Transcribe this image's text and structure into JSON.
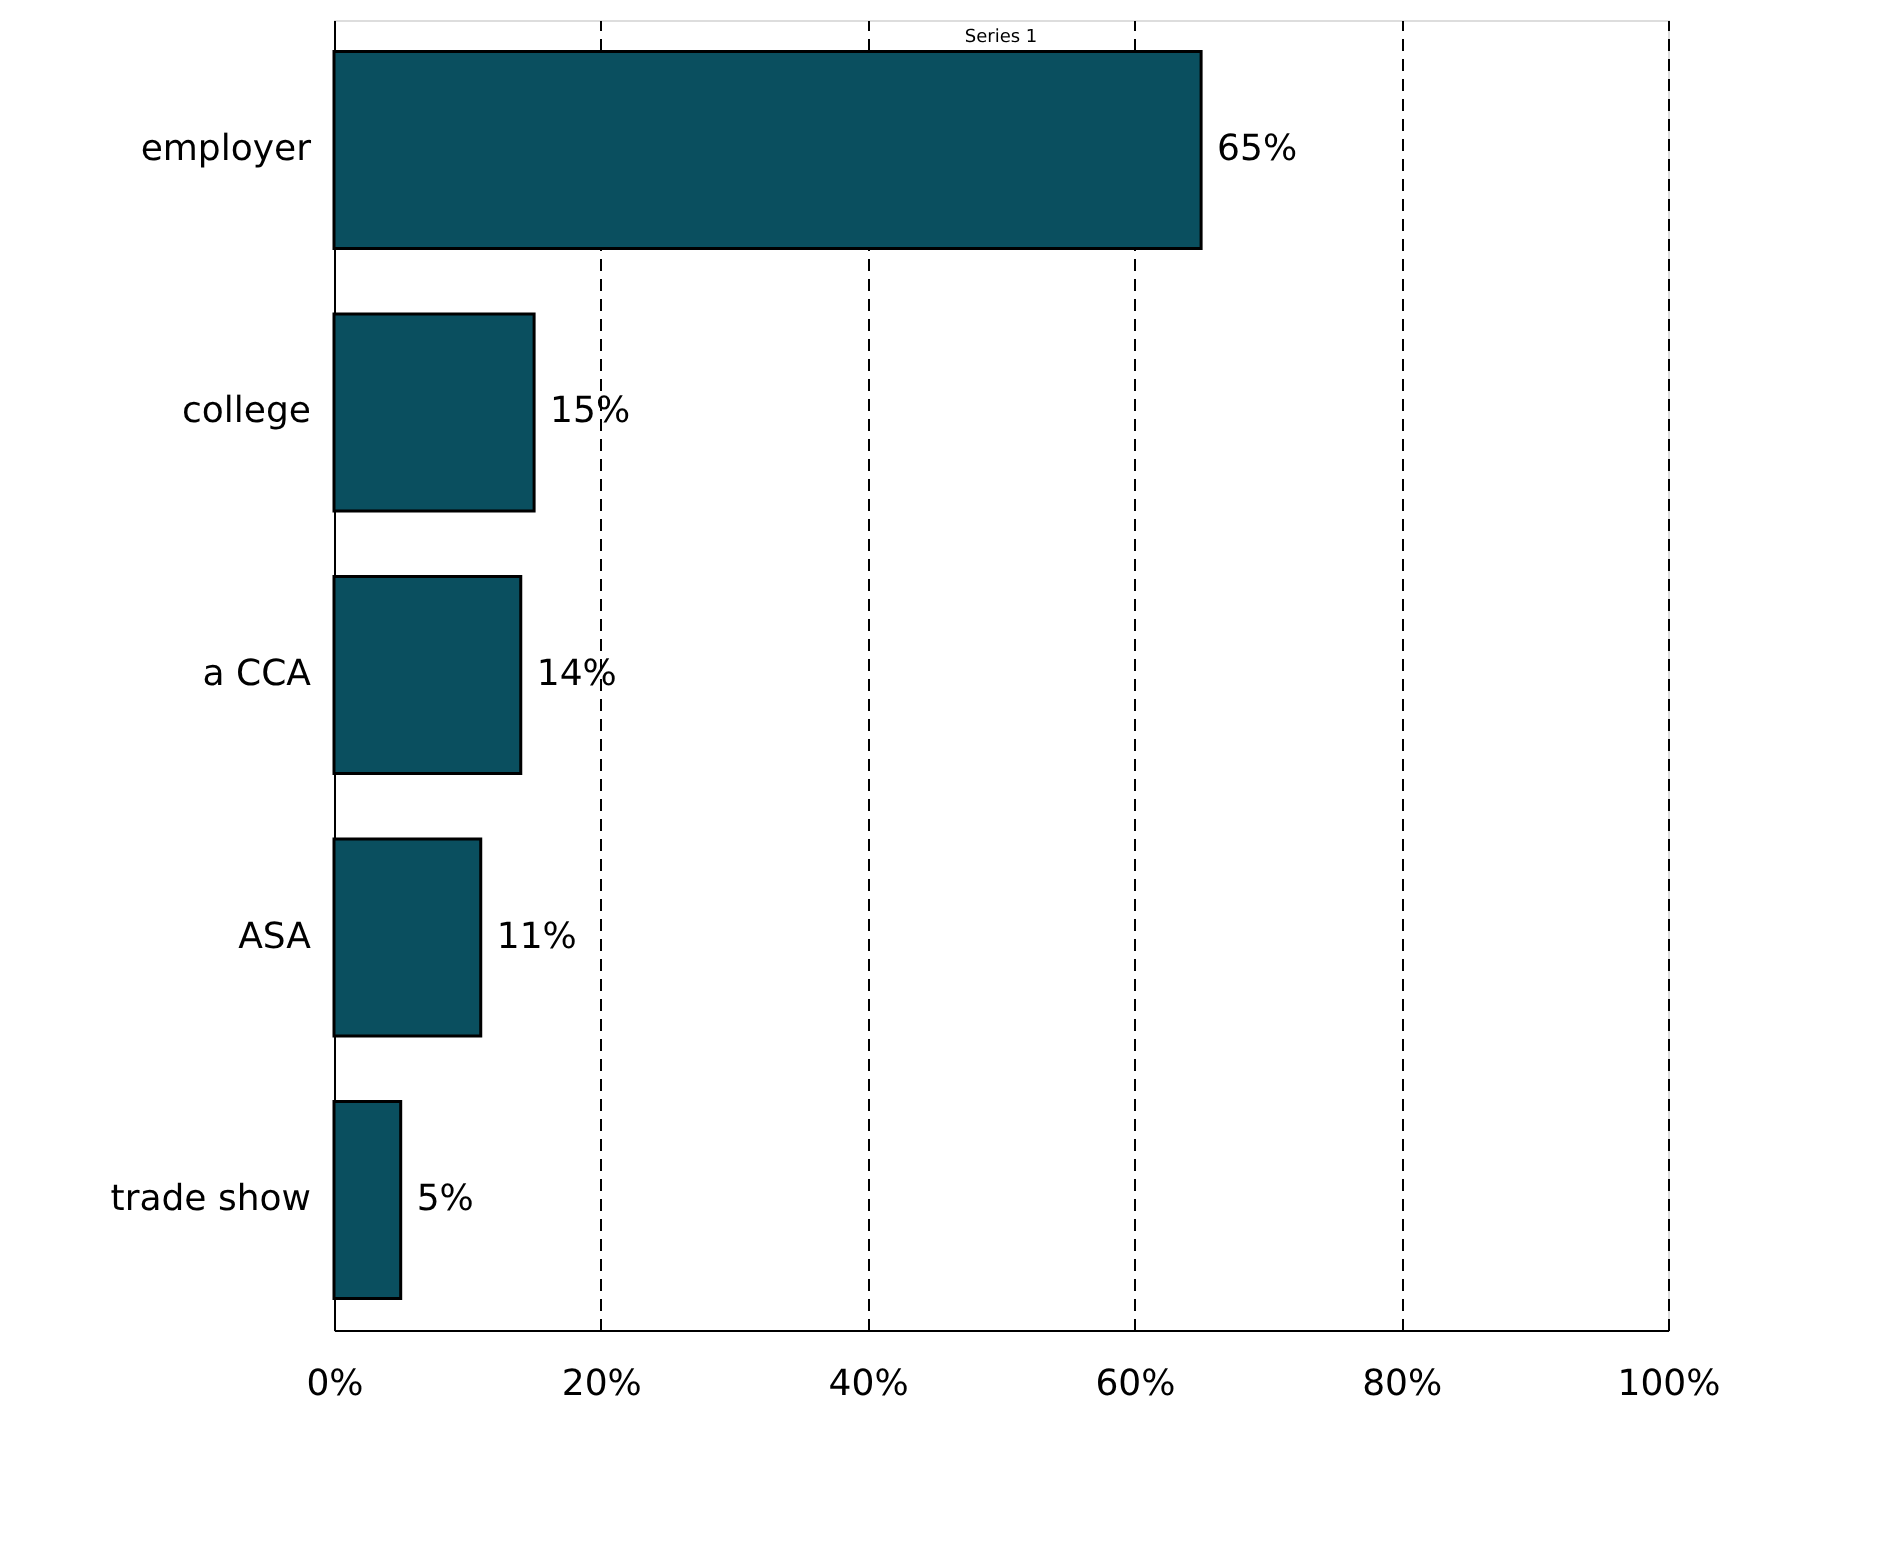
{
  "chart_data": {
    "type": "bar",
    "orientation": "horizontal",
    "categories": [
      "employer",
      "college",
      "a CCA",
      "ASA",
      "trade show"
    ],
    "series": [
      {
        "name": "Series 1",
        "color": "#0a4f5f",
        "values": [
          65,
          15,
          14,
          11,
          5
        ],
        "value_labels": [
          "65%",
          "15%",
          "14%",
          "11%",
          "5%"
        ]
      }
    ],
    "xlim": [
      0,
      100
    ],
    "xticks": [
      {
        "value": 0,
        "label": "0%"
      },
      {
        "value": 20,
        "label": "20%"
      },
      {
        "value": 40,
        "label": "40%"
      },
      {
        "value": 60,
        "label": "60%"
      },
      {
        "value": 80,
        "label": "80%"
      },
      {
        "value": 100,
        "label": "100%"
      }
    ],
    "grid": "x",
    "legend": "top"
  }
}
